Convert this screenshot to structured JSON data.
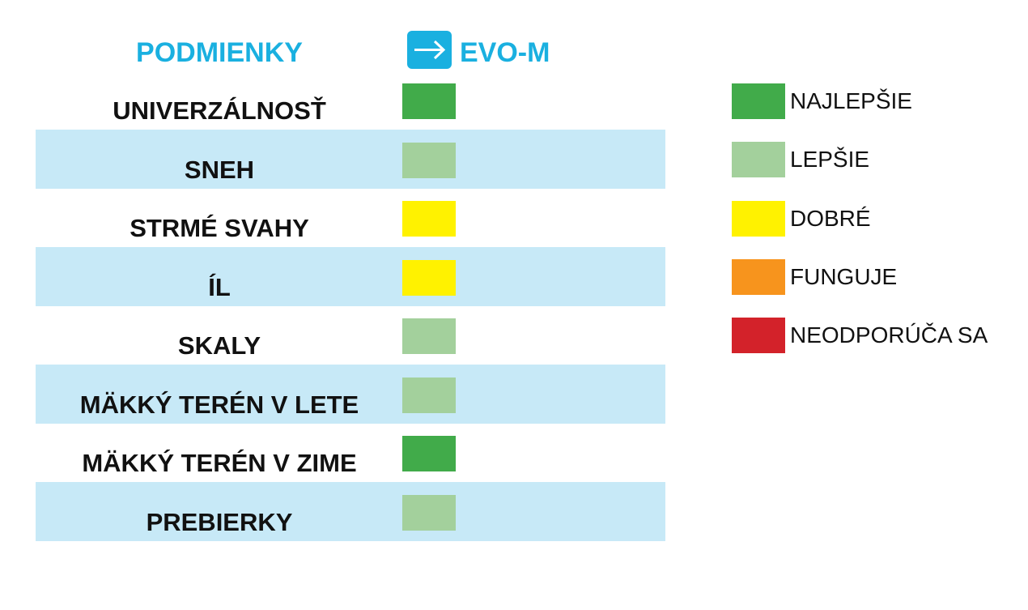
{
  "header": {
    "title": "PODMIENKY",
    "product": "EVO-M"
  },
  "rows": [
    {
      "label": "UNIVERZÁLNOSŤ",
      "color": "#41ab4a"
    },
    {
      "label": "SNEH",
      "color": "#a3d09c"
    },
    {
      "label": "STRMÉ SVAHY",
      "color": "#fff200"
    },
    {
      "label": "ÍL",
      "color": "#fff200"
    },
    {
      "label": "SKALY",
      "color": "#a3d09c"
    },
    {
      "label": "MÄKKÝ TERÉN V LETE",
      "color": "#a3d09c"
    },
    {
      "label": "MÄKKÝ TERÉN V ZIME",
      "color": "#41ab4a"
    },
    {
      "label": "PREBIERKY",
      "color": "#a3d09c"
    }
  ],
  "stripe_color": "#c7e9f7",
  "legend": [
    {
      "label": "NAJLEPŠIE",
      "color": "#41ab4a"
    },
    {
      "label": "LEPŠIE",
      "color": "#a3d09c"
    },
    {
      "label": "DOBRÉ",
      "color": "#fff200"
    },
    {
      "label": "FUNGUJE",
      "color": "#f7941d"
    },
    {
      "label": "NEODPORÚČA SA",
      "color": "#d3222a"
    }
  ]
}
